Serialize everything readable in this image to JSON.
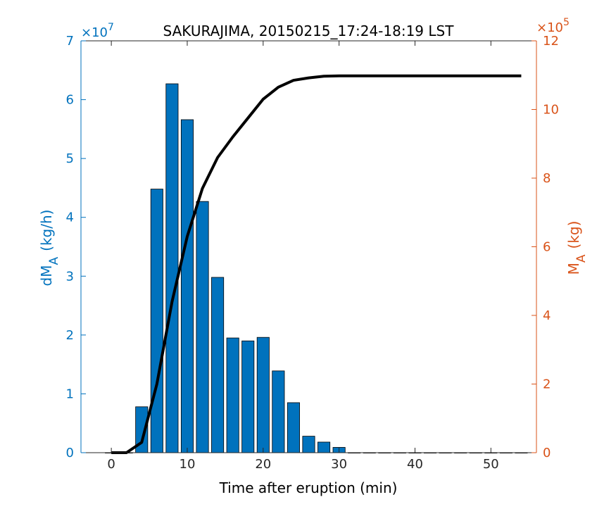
{
  "chart_data": {
    "type": "bar",
    "title": "SAKURAJIMA, 20150215_17:24-18:19 LST",
    "xlabel": "Time after eruption (min)",
    "xlim": [
      -4,
      56
    ],
    "x_ticks": [
      0,
      10,
      20,
      30,
      40,
      50
    ],
    "left_axis": {
      "label_main": "dM",
      "label_sub": "A",
      "label_units": "(kg/h)",
      "exponent_base": "×10",
      "exponent_power": "7",
      "ylim": [
        0,
        7
      ],
      "ticks": [
        0,
        1,
        2,
        3,
        4,
        5,
        6,
        7
      ],
      "color": "#0072BD"
    },
    "right_axis": {
      "label_main": "M",
      "label_sub": "A",
      "label_units": "(kg)",
      "exponent_base": "×10",
      "exponent_power": "5",
      "ylim": [
        0,
        12
      ],
      "ticks": [
        0,
        2,
        4,
        6,
        8,
        10,
        12
      ],
      "color": "#D95319"
    },
    "series": [
      {
        "kind": "bar",
        "axis": "left",
        "color": "#0072BD",
        "x": [
          0,
          2,
          4,
          6,
          8,
          10,
          12,
          14,
          16,
          18,
          20,
          22,
          24,
          26,
          28,
          30,
          32,
          34,
          36,
          38,
          40,
          42,
          44,
          46,
          48,
          50,
          52,
          54
        ],
        "values": [
          0,
          0,
          0.78,
          4.48,
          6.27,
          5.66,
          4.27,
          2.98,
          1.95,
          1.9,
          1.96,
          1.39,
          0.85,
          0.28,
          0.18,
          0.09,
          0,
          0,
          0,
          0,
          0,
          0,
          0,
          0,
          0,
          0,
          0,
          0
        ]
      },
      {
        "kind": "line",
        "axis": "right",
        "color": "#000000",
        "x": [
          0,
          2,
          4,
          6,
          8,
          10,
          12,
          14,
          16,
          18,
          20,
          22,
          24,
          26,
          28,
          30,
          32,
          34,
          36,
          38,
          40,
          42,
          44,
          46,
          48,
          50,
          52,
          54
        ],
        "values": [
          0,
          0,
          0.3,
          2.0,
          4.4,
          6.3,
          7.7,
          8.6,
          9.2,
          9.75,
          10.3,
          10.65,
          10.85,
          10.92,
          10.97,
          10.98,
          10.98,
          10.98,
          10.98,
          10.98,
          10.98,
          10.98,
          10.98,
          10.98,
          10.98,
          10.98,
          10.98,
          10.98
        ]
      }
    ]
  }
}
